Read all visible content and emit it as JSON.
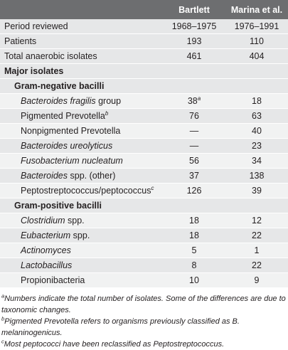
{
  "header": {
    "col1": "Bartlett",
    "col2": "Marina et al."
  },
  "top_rows": [
    {
      "label": "Period reviewed",
      "bartlett": "1968–1975",
      "marina": "1976–1991"
    },
    {
      "label": "Patients",
      "bartlett": "193",
      "marina": "110"
    },
    {
      "label": "Total anaerobic isolates",
      "bartlett": "461",
      "marina": "404"
    }
  ],
  "section_label": "Major isolates",
  "gram_negative": {
    "label": "Gram-negative bacilli",
    "rows": [
      {
        "label": "Bacteroides fragilis",
        "label_rest": " group",
        "bartlett": "38",
        "bartlett_sup": "a",
        "marina": "18"
      },
      {
        "label": "Pigmented Prevotella",
        "label_sup": "b",
        "bartlett": "76",
        "marina": "63"
      },
      {
        "label": "Nonpigmented Prevotella",
        "bartlett": "—",
        "marina": "40"
      },
      {
        "label": "Bacteroides ureolyticus",
        "bartlett": "—",
        "marina": "23"
      },
      {
        "label": "Fusobacterium nucleatum",
        "bartlett": "56",
        "marina": "34"
      },
      {
        "label": "Bacteroides",
        "label_rest": " spp. (other)",
        "bartlett": "37",
        "marina": "138"
      },
      {
        "label": "Peptostreptococcus/peptococcus",
        "label_sup": "c",
        "bartlett": "126",
        "marina": "39"
      }
    ]
  },
  "gram_positive": {
    "label": "Gram-positive bacilli",
    "rows": [
      {
        "label": "Clostridium",
        "label_rest": " spp.",
        "bartlett": "18",
        "marina": "12"
      },
      {
        "label": "Eubacterium",
        "label_rest": " spp.",
        "bartlett": "18",
        "marina": "22"
      },
      {
        "label": "Actinomyces",
        "bartlett": "5",
        "marina": "1"
      },
      {
        "label": "Lactobacillus",
        "bartlett": "8",
        "marina": "22"
      },
      {
        "label": "Propionibacteria",
        "bartlett": "10",
        "marina": "9"
      }
    ]
  },
  "footnotes": [
    {
      "mark": "a",
      "text": "Numbers indicate the total number of isolates. Some of the differences are due to taxonomic changes."
    },
    {
      "mark": "b",
      "text": "Pigmented Prevotella refers to organisms previously classified as B. melaninogenicus."
    },
    {
      "mark": "c",
      "text": "Most peptococci have been reclassified as Peptostreptococcus."
    }
  ]
}
